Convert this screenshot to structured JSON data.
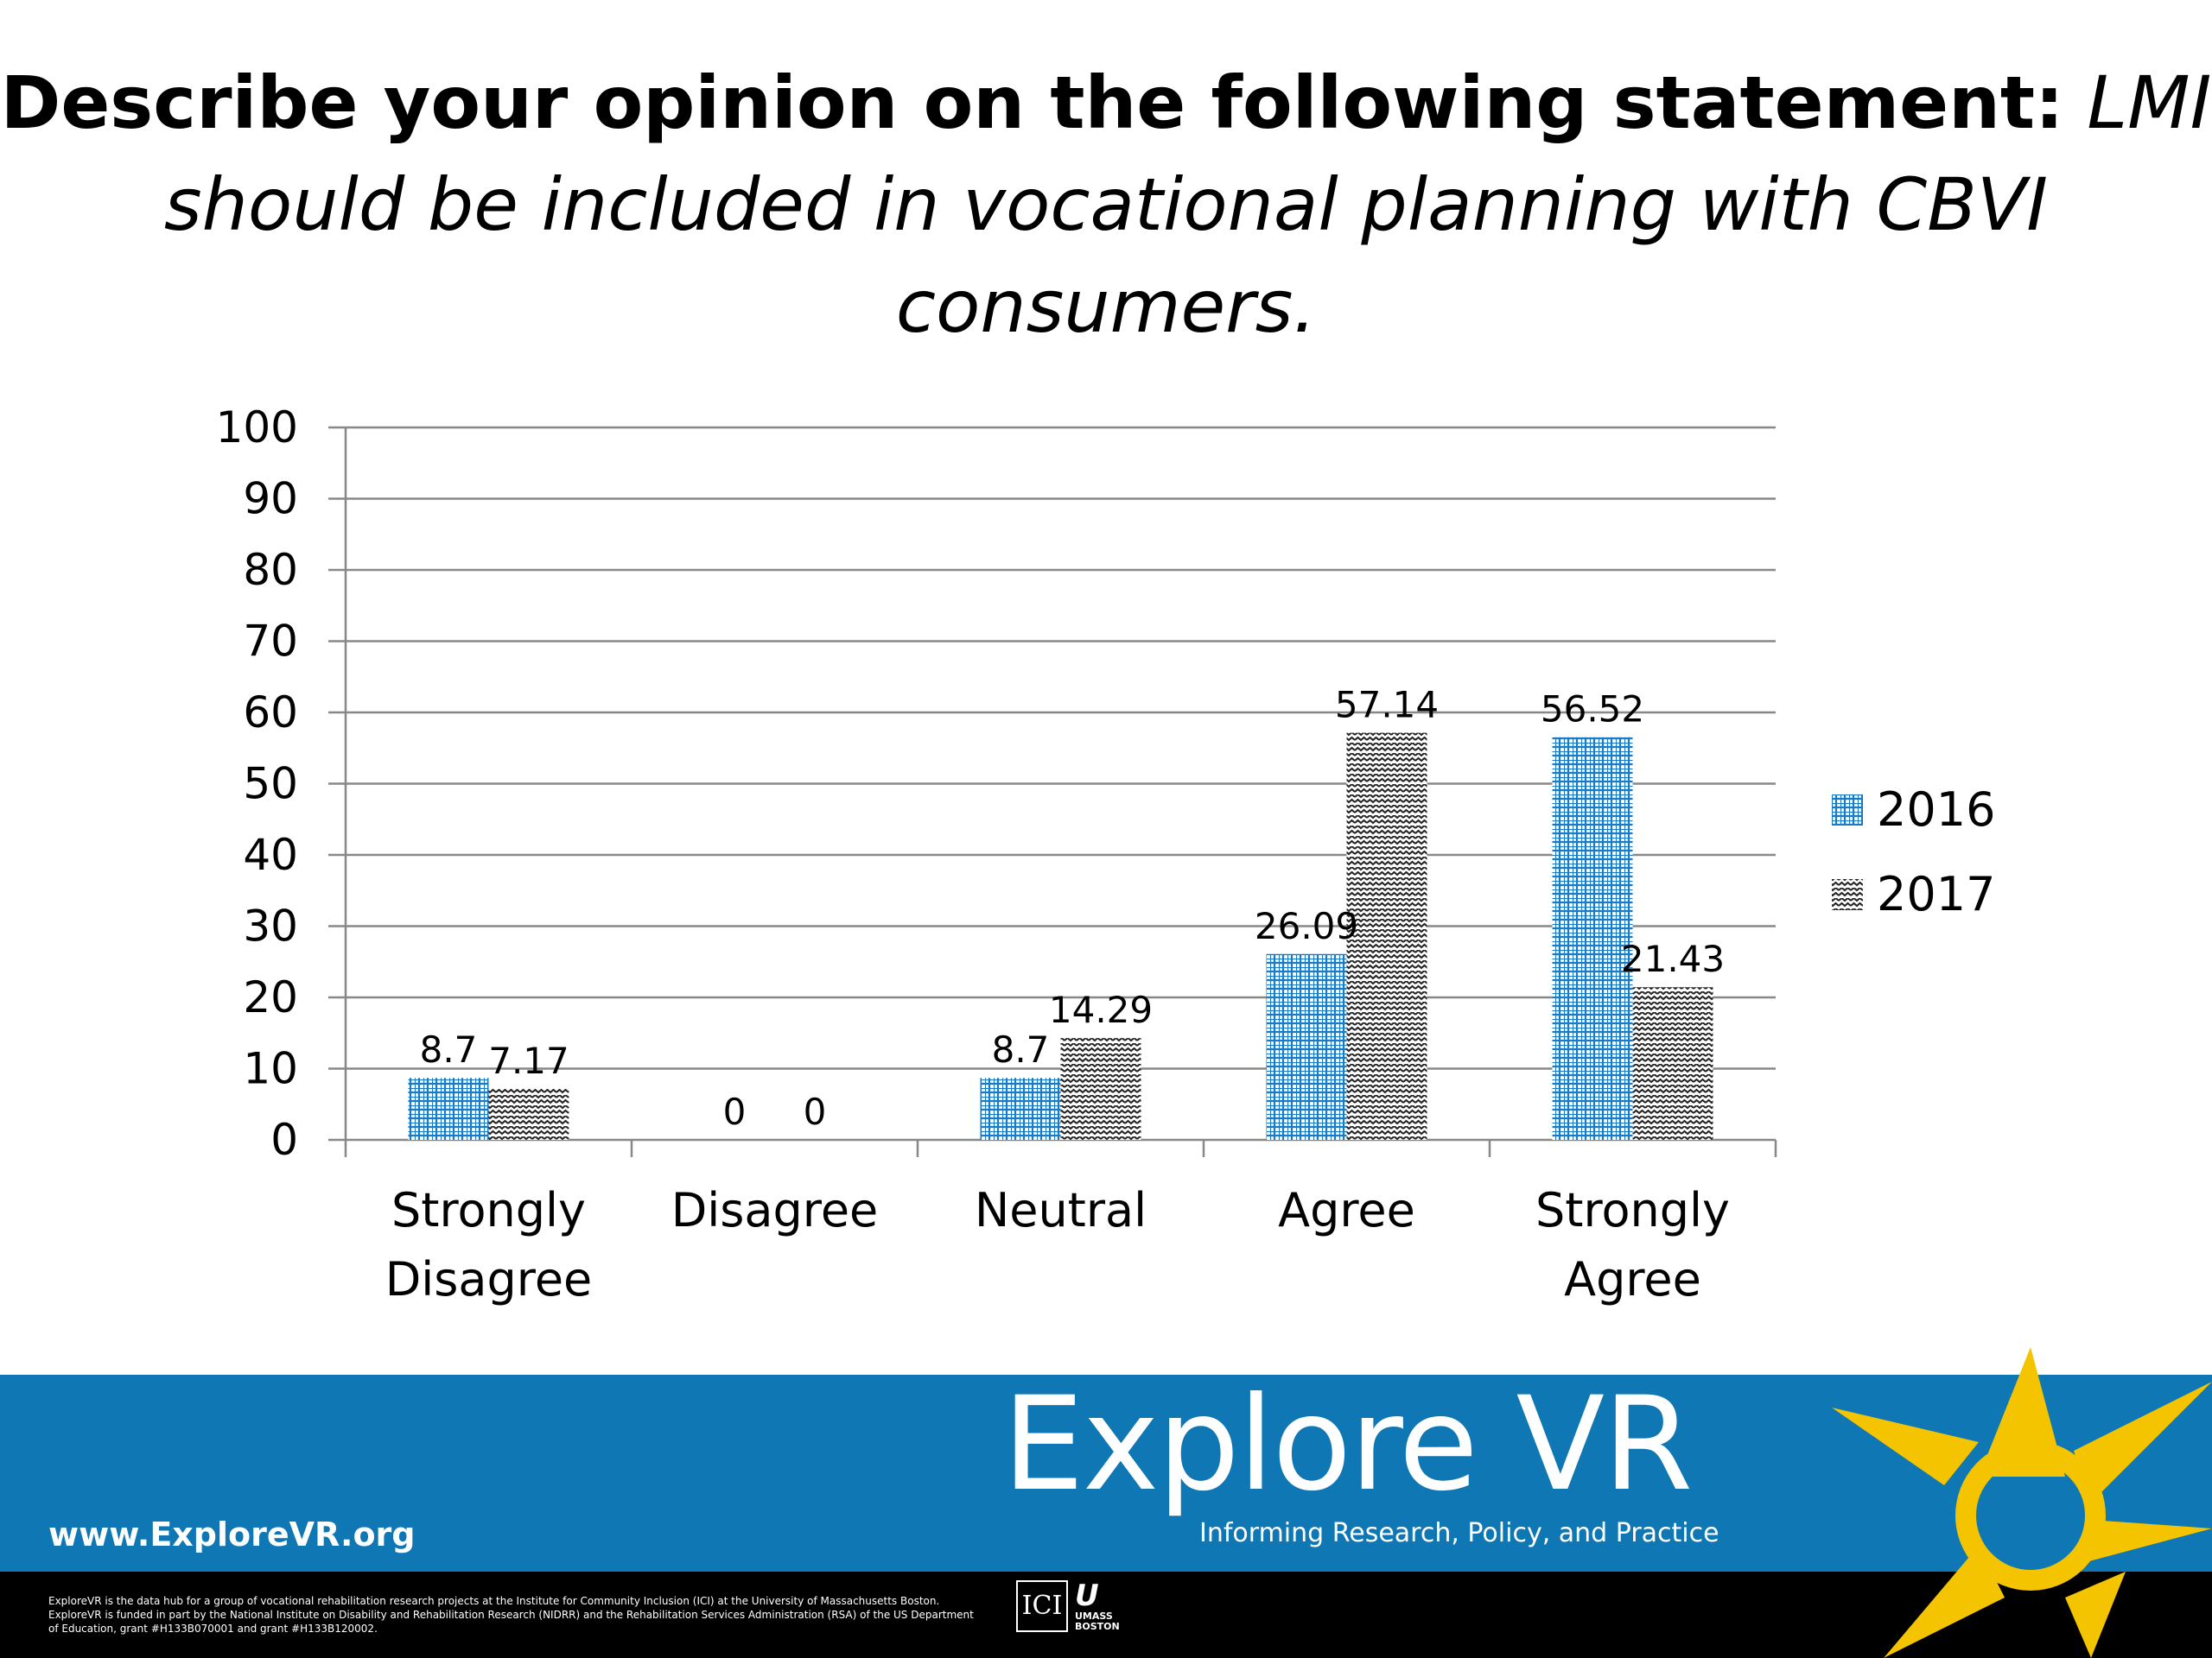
{
  "title": {
    "bold_part": "Describe your opinion on the following statement:",
    "italic_part": "LMI should be included in vocational planning with CBVI consumers."
  },
  "chart_data": {
    "type": "bar",
    "categories": [
      [
        "Strongly",
        "Disagree"
      ],
      [
        "Disagree"
      ],
      [
        "Neutral"
      ],
      [
        "Agree"
      ],
      [
        "Strongly",
        "Agree"
      ]
    ],
    "series": [
      {
        "name": "2016",
        "values": [
          8.7,
          0,
          8.7,
          26.09,
          56.52
        ],
        "color": "#1a7bc4",
        "pattern": "grid"
      },
      {
        "name": "2017",
        "values": [
          7.17,
          0,
          14.29,
          57.14,
          21.43
        ],
        "color": "#222222",
        "pattern": "zigzag"
      }
    ],
    "ylim": [
      0,
      100
    ],
    "yticks": [
      0,
      10,
      20,
      30,
      40,
      50,
      60,
      70,
      80,
      90,
      100
    ],
    "grid": true,
    "legend": "right",
    "data_labels": true
  },
  "footer": {
    "url": "www.ExploreVR.org",
    "brand": "Explore VR",
    "tagline": "Informing Research, Policy, and Practice",
    "fineprint": "ExploreVR is the data hub for a group of vocational rehabilitation research projects at the Institute for Community Inclusion (ICI) at the University of Massachusetts Boston. ExploreVR is funded in part by the National Institute on Disability and Rehabilitation Research (NIDRR) and the Rehabilitation Services Administration (RSA) of the US Department of Education, grant #H133B070001 and grant #H133B120002.",
    "ici_logo_text": "ICI",
    "umass_logo_text": "UMASS BOSTON",
    "band_color": "#0e77b4",
    "sun_color": "#f4c400"
  }
}
